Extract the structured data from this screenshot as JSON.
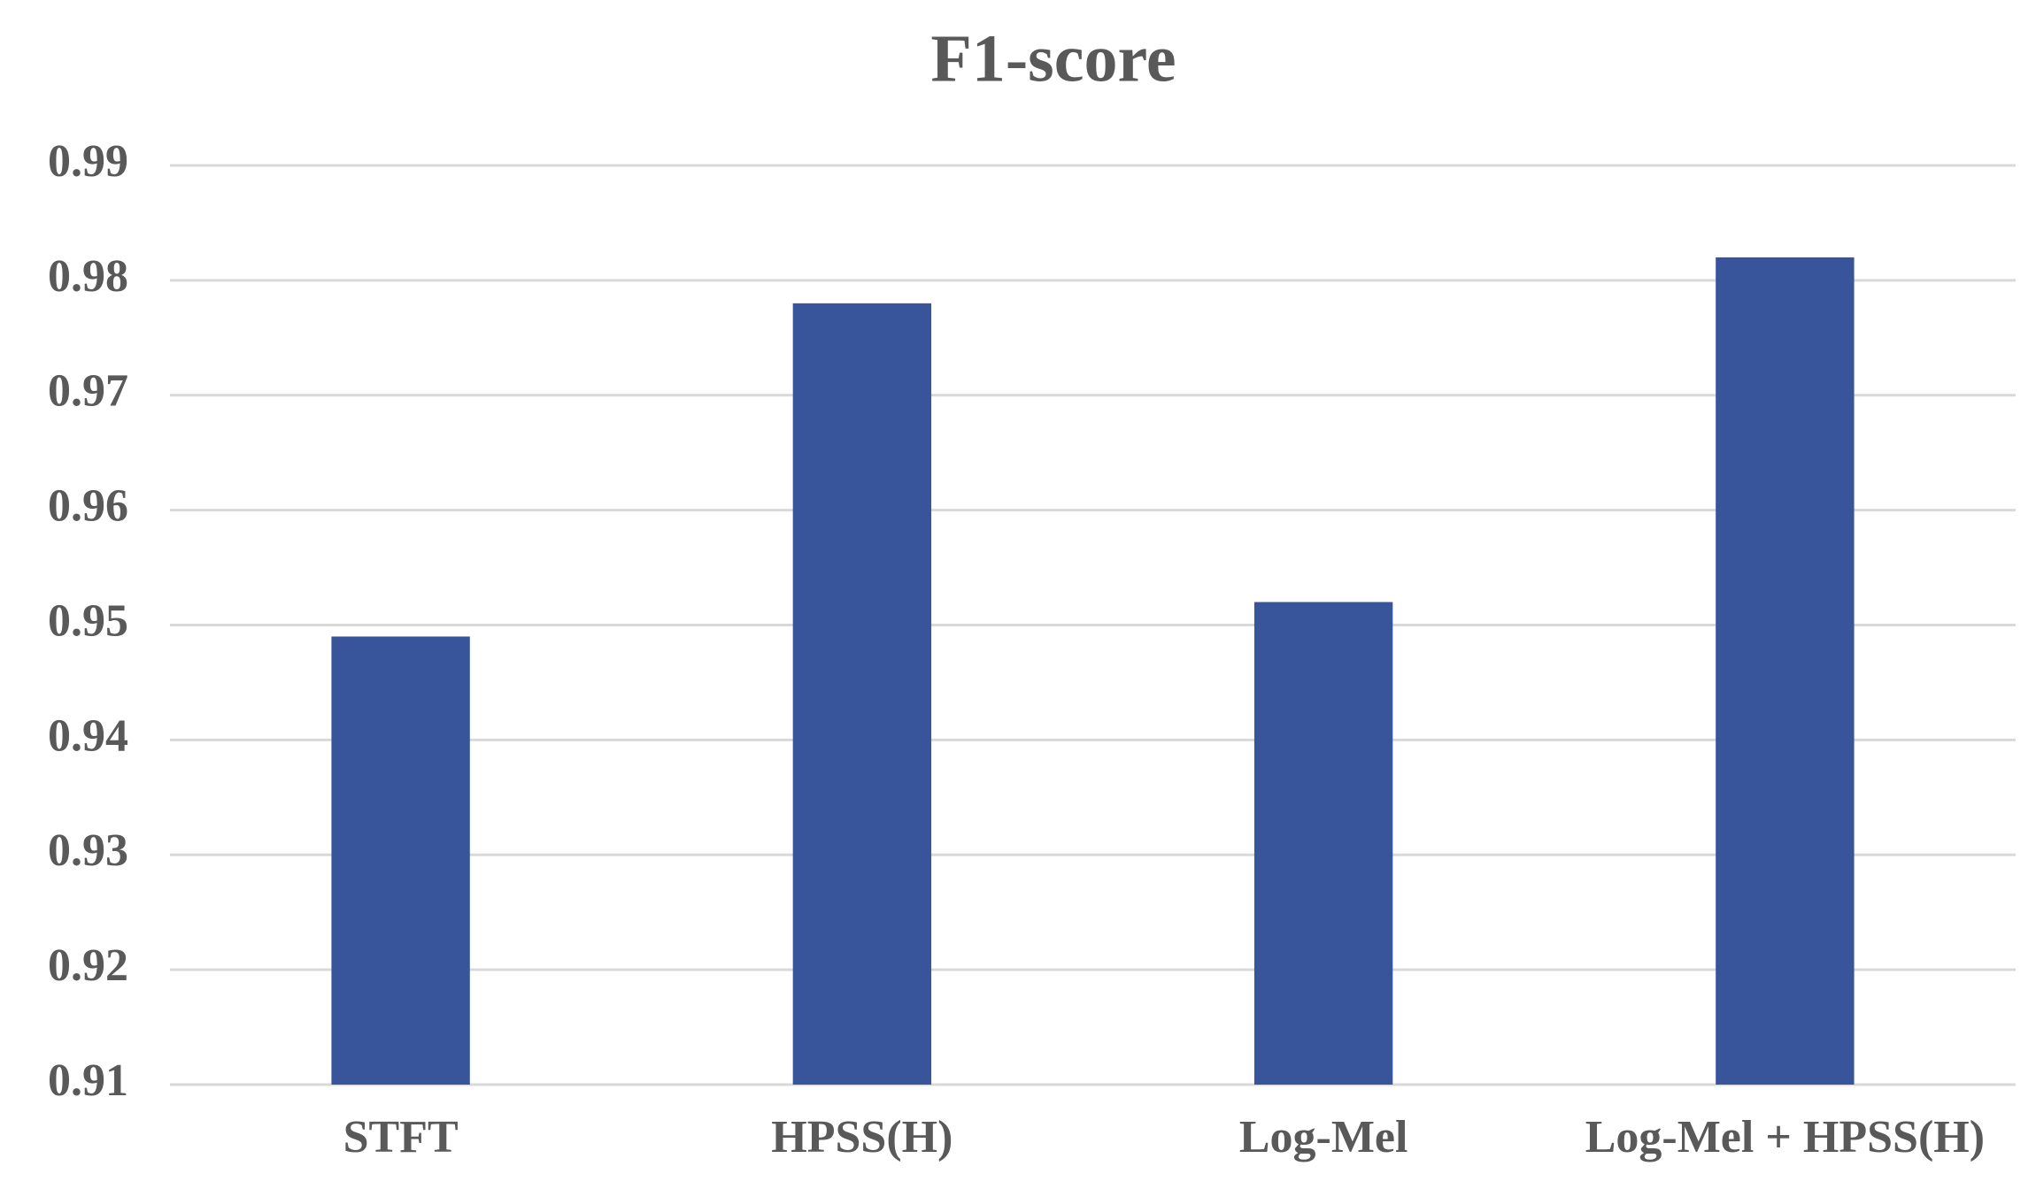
{
  "chart_data": {
    "type": "bar",
    "title": "F1-score",
    "categories": [
      "STFT",
      "HPSS(H)",
      "Log-Mel",
      "Log-Mel + HPSS(H)"
    ],
    "values": [
      0.949,
      0.978,
      0.952,
      0.982
    ],
    "color": "#38549b",
    "ylim": [
      0.91,
      0.99
    ],
    "yticks": [
      0.91,
      0.92,
      0.93,
      0.94,
      0.95,
      0.96,
      0.97,
      0.98,
      0.99
    ],
    "grid": true
  }
}
